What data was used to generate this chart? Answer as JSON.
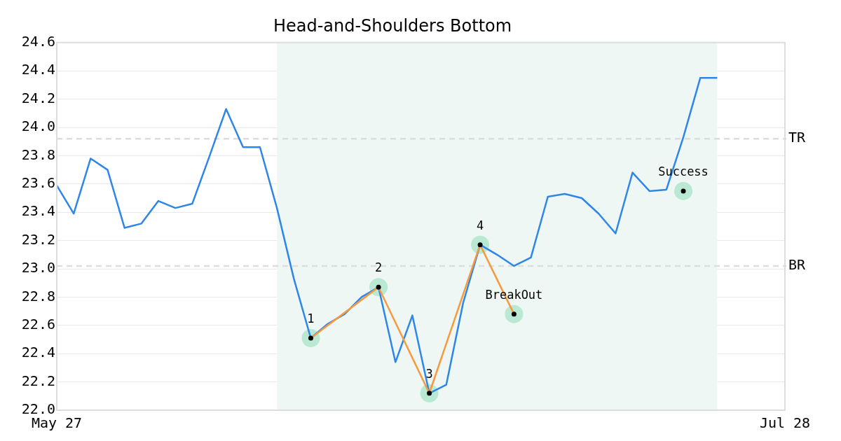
{
  "chart_data": {
    "type": "line",
    "title": "Head-and-Shoulders Bottom",
    "categories": [
      "May 27",
      null,
      null,
      null,
      null,
      null,
      null,
      null,
      null,
      null,
      null,
      null,
      null,
      null,
      null,
      null,
      null,
      null,
      null,
      null,
      null,
      null,
      null,
      null,
      null,
      null,
      null,
      null,
      null,
      null,
      null,
      null,
      null,
      null,
      null,
      null,
      null,
      null,
      null,
      null,
      null,
      null,
      null,
      "Jul 28"
    ],
    "ylim": [
      22.0,
      24.6
    ],
    "yticks": [
      {
        "value": 22,
        "label": "22.0"
      },
      22.2,
      22.4,
      22.6,
      22.8,
      {
        "value": 23,
        "label": "23.0"
      },
      23.2,
      23.4,
      23.6,
      23.8,
      {
        "value": 24,
        "label": "24.0"
      },
      24.2,
      24.4,
      24.6
    ],
    "grid": "y",
    "legend": false,
    "line_style": "solid",
    "series": [
      {
        "color": "#2e86e8",
        "values": [
          23.59,
          23.39,
          23.78,
          23.7,
          23.29,
          23.32,
          23.48,
          23.43,
          23.46,
          23.79,
          24.13,
          23.86,
          23.86,
          23.43,
          22.93,
          22.51,
          22.61,
          22.68,
          22.8,
          22.87,
          22.34,
          22.67,
          22.12,
          22.18,
          22.76,
          23.17,
          23.1,
          23.02,
          23.08,
          23.51,
          23.53,
          23.5,
          23.39,
          23.25,
          23.68,
          23.55,
          23.56,
          23.93,
          24.35,
          24.35,
          null,
          null,
          null,
          null
        ]
      },
      {
        "color": "#f79a3e",
        "values": [
          null,
          null,
          null,
          null,
          null,
          null,
          null,
          null,
          null,
          null,
          null,
          null,
          null,
          null,
          null,
          22.51,
          null,
          null,
          null,
          22.87,
          null,
          null,
          22.12,
          null,
          null,
          23.17,
          null,
          22.68,
          null,
          null,
          null,
          null,
          null,
          null,
          null,
          null,
          null,
          null,
          null,
          null,
          null,
          null,
          null,
          null
        ]
      },
      {
        "type": "scatter",
        "color": "#b9e8d3",
        "marker": "circle",
        "values": [
          null,
          null,
          null,
          null,
          null,
          null,
          null,
          null,
          null,
          null,
          null,
          null,
          null,
          null,
          null,
          22.51,
          null,
          null,
          null,
          22.87,
          null,
          null,
          22.12,
          null,
          null,
          23.17,
          null,
          22.68,
          null,
          null,
          null,
          null,
          null,
          null,
          null,
          null,
          null,
          23.55,
          null,
          null,
          null,
          null,
          null,
          null
        ]
      }
    ],
    "annotations": [
      {
        "text": "1",
        "y": 22.51
      },
      {
        "text": "2",
        "y": 22.87
      },
      {
        "text": "3",
        "y": 22.12
      },
      {
        "text": "4",
        "y": 23.17
      },
      {
        "text": "BreakOut",
        "y": 22.68
      },
      {
        "text": "Success",
        "y": 23.55
      }
    ],
    "ref_lines": [
      {
        "axis": "y",
        "value": 23.92,
        "label": "TR",
        "color": "#dddddd",
        "line_style": "dashed"
      },
      {
        "axis": "y",
        "value": 23.02,
        "label": "BR",
        "color": "#dddddd",
        "line_style": "dashed"
      }
    ]
  }
}
